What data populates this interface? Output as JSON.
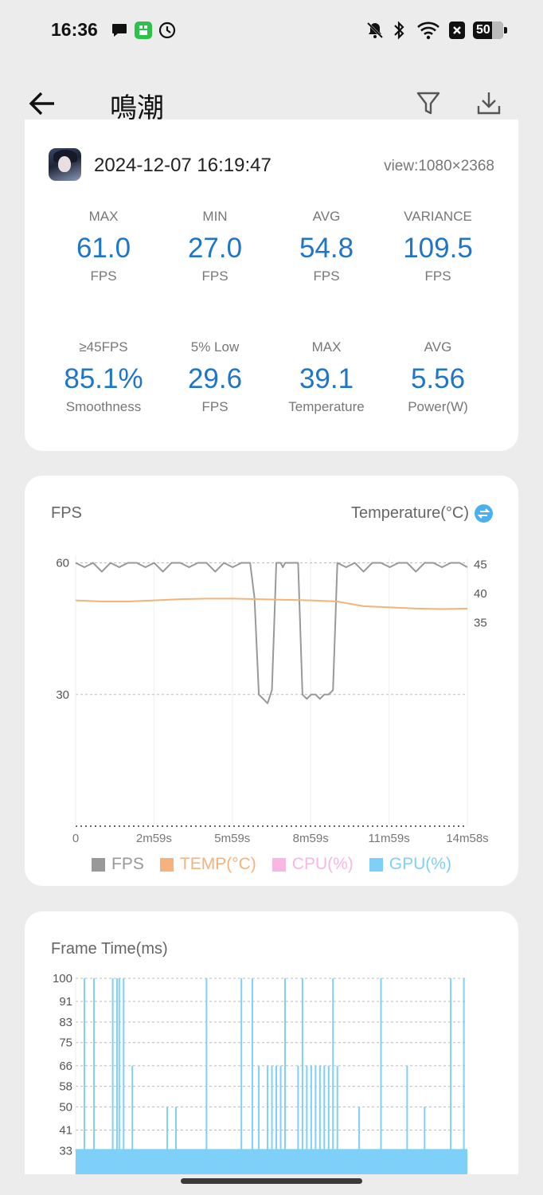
{
  "status_bar": {
    "time": "16:36",
    "left_icons": [
      "chat-icon",
      "app-badge-icon",
      "clock-icon"
    ],
    "right_icons": [
      "bell-off-icon",
      "bluetooth-icon",
      "wifi-icon",
      "close-box-icon",
      "battery-icon"
    ],
    "battery": "50"
  },
  "app_bar": {
    "title": "鳴潮",
    "back_icon": "arrow-left-icon",
    "filter_icon": "filter-icon",
    "download_icon": "download-icon"
  },
  "summary": {
    "datetime": "2024-12-07 16:19:47",
    "view": "view:1080×2368",
    "stats": [
      {
        "label": "MAX",
        "value": "61.0",
        "unit": "FPS"
      },
      {
        "label": "MIN",
        "value": "27.0",
        "unit": "FPS"
      },
      {
        "label": "AVG",
        "value": "54.8",
        "unit": "FPS"
      },
      {
        "label": "VARIANCE",
        "value": "109.5",
        "unit": "FPS"
      },
      {
        "label": "≥45FPS",
        "value": "85.1%",
        "unit": "Smoothness"
      },
      {
        "label": "5% Low",
        "value": "29.6",
        "unit": "FPS"
      },
      {
        "label": "MAX",
        "value": "39.1",
        "unit": "Temperature"
      },
      {
        "label": "AVG",
        "value": "5.56",
        "unit": "Power(W)"
      }
    ],
    "accent_color": "#1e75c9"
  },
  "fps_chart": {
    "title_left": "FPS",
    "title_right": "Temperature(°C)",
    "swap_icon": "swap-vertical-icon",
    "legend": [
      {
        "label": "FPS",
        "color": "#999999"
      },
      {
        "label": "TEMP(°C)",
        "color": "#f5b27a"
      },
      {
        "label": "CPU(%)",
        "color": "#f7b7e0"
      },
      {
        "label": "GPU(%)",
        "color": "#7fd0f8"
      }
    ]
  },
  "frametime_chart": {
    "title": "Frame Time(ms)"
  },
  "chart_data": [
    {
      "type": "line",
      "x_ticks": [
        "0",
        "2m59s",
        "5m59s",
        "8m59s",
        "11m59s",
        "14m58s"
      ],
      "x_range_seconds": [
        0,
        898
      ],
      "y_left_ticks": [
        "60",
        "30"
      ],
      "y_left_range": [
        0,
        61
      ],
      "y_right_ticks": [
        "45",
        "40",
        "35"
      ],
      "y_right_range": [
        0,
        46
      ],
      "series": [
        {
          "name": "FPS",
          "x": [
            0,
            20,
            40,
            60,
            80,
            100,
            120,
            140,
            160,
            180,
            200,
            220,
            240,
            260,
            280,
            300,
            320,
            340,
            360,
            380,
            400,
            410,
            420,
            430,
            440,
            450,
            460,
            470,
            475,
            480,
            500,
            510,
            520,
            530,
            540,
            550,
            560,
            570,
            580,
            590,
            600,
            620,
            640,
            660,
            680,
            700,
            720,
            740,
            760,
            780,
            800,
            820,
            840,
            860,
            880,
            898
          ],
          "values": [
            60,
            59,
            60,
            58,
            60,
            59,
            60,
            60,
            59,
            60,
            58,
            60,
            60,
            59,
            60,
            60,
            58,
            60,
            59,
            60,
            60,
            52,
            30,
            29,
            28,
            31,
            60,
            60,
            59,
            60,
            60,
            60,
            30,
            29,
            30,
            30,
            29,
            30,
            30,
            31,
            60,
            59,
            60,
            58,
            60,
            60,
            59,
            60,
            60,
            58,
            60,
            60,
            59,
            60,
            60,
            59
          ]
        },
        {
          "name": "TEMP(°C)",
          "x": [
            0,
            60,
            120,
            180,
            240,
            300,
            360,
            420,
            480,
            540,
            600,
            660,
            720,
            780,
            840,
            898
          ],
          "values": [
            38.8,
            38.6,
            38.6,
            38.8,
            39.0,
            39.1,
            39.1,
            39.0,
            38.9,
            38.8,
            38.6,
            37.8,
            37.6,
            37.4,
            37.3,
            37.4
          ]
        }
      ]
    },
    {
      "type": "bar",
      "y_ticks": [
        "100",
        "91",
        "83",
        "75",
        "66",
        "58",
        "50",
        "41",
        "33"
      ],
      "y_range": [
        30,
        100
      ],
      "series": [
        {
          "name": "Frame Time(ms)",
          "x": [
            20,
            42,
            85,
            95,
            100,
            110,
            130,
            210,
            230,
            300,
            380,
            405,
            420,
            440,
            450,
            460,
            470,
            480,
            510,
            520,
            530,
            540,
            550,
            560,
            570,
            580,
            590,
            600,
            650,
            700,
            760,
            800,
            860,
            890
          ],
          "values": [
            100,
            100,
            100,
            100,
            100,
            100,
            66,
            50,
            50,
            100,
            100,
            100,
            66,
            66,
            66,
            66,
            66,
            100,
            66,
            100,
            66,
            66,
            66,
            66,
            66,
            66,
            100,
            66,
            50,
            100,
            66,
            50,
            100,
            100
          ]
        }
      ]
    }
  ]
}
